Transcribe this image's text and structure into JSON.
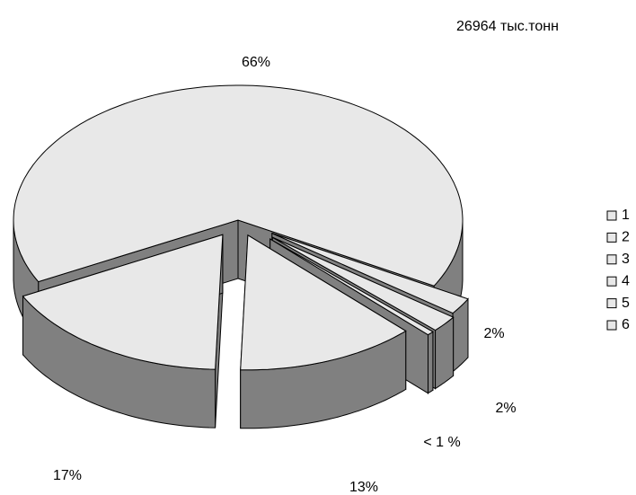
{
  "chart_data": {
    "type": "pie",
    "subtitle": "26964 тыс.тонн",
    "categories": [
      "1",
      "2",
      "3",
      "4",
      "5",
      "6"
    ],
    "values": [
      66,
      2,
      2,
      0.5,
      13,
      17
    ],
    "value_labels": [
      "66%",
      "2%",
      "2%",
      "< 1 %",
      "13%",
      "17%"
    ],
    "color": "#e8e8e8",
    "side_color": "#808080",
    "legend": "right"
  }
}
